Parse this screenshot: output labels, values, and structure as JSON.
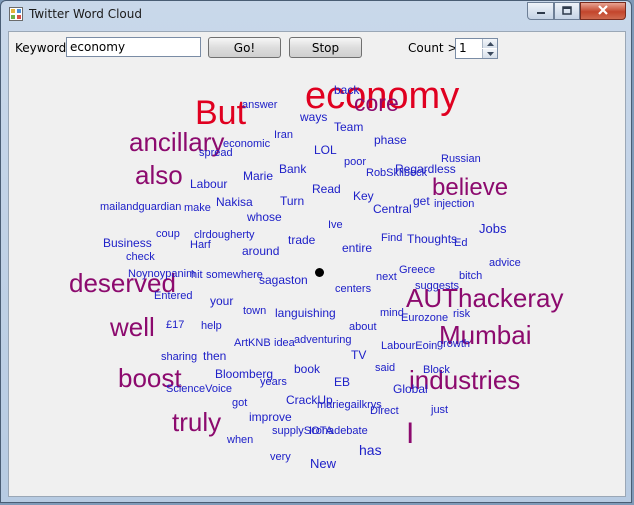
{
  "window": {
    "title": "Twitter Word Cloud"
  },
  "toolbar": {
    "keyword_label": "Keyword:",
    "keyword_value": "economy",
    "go_label": "Go!",
    "stop_label": "Stop",
    "count_label": "Count >",
    "count_value": "1"
  },
  "colors": {
    "red": "#e00020",
    "purple": "#8c0a6e",
    "blue": "#1e20c8"
  },
  "cloud": {
    "words": [
      {
        "text": "economy",
        "color": "red"
      },
      {
        "text": "But",
        "color": "red"
      },
      {
        "text": "core",
        "color": "purple"
      },
      {
        "text": "ancillary",
        "color": "purple"
      },
      {
        "text": "also",
        "color": "purple"
      },
      {
        "text": "believe",
        "color": "purple"
      },
      {
        "text": "deserved",
        "color": "purple"
      },
      {
        "text": "AUThackeray",
        "color": "purple"
      },
      {
        "text": "well",
        "color": "purple"
      },
      {
        "text": "Mumbai",
        "color": "purple"
      },
      {
        "text": "boost",
        "color": "purple"
      },
      {
        "text": "industries",
        "color": "purple"
      },
      {
        "text": "truly",
        "color": "purple"
      },
      {
        "text": "I",
        "color": "purple"
      },
      {
        "text": "back",
        "color": "blue"
      },
      {
        "text": "answer",
        "color": "blue"
      },
      {
        "text": "ways",
        "color": "blue"
      },
      {
        "text": "Iran",
        "color": "blue"
      },
      {
        "text": "Team",
        "color": "blue"
      },
      {
        "text": "phase",
        "color": "blue"
      },
      {
        "text": "economic",
        "color": "blue"
      },
      {
        "text": "spread",
        "color": "blue"
      },
      {
        "text": "LOL",
        "color": "blue"
      },
      {
        "text": "poor",
        "color": "blue"
      },
      {
        "text": "Russian",
        "color": "blue"
      },
      {
        "text": "Bank",
        "color": "blue"
      },
      {
        "text": "Marie",
        "color": "blue"
      },
      {
        "text": "Regardless",
        "color": "blue"
      },
      {
        "text": "RobSkilbeck",
        "color": "blue"
      },
      {
        "text": "Labour",
        "color": "blue"
      },
      {
        "text": "Read",
        "color": "blue"
      },
      {
        "text": "Key",
        "color": "blue"
      },
      {
        "text": "Nakisa",
        "color": "blue"
      },
      {
        "text": "Turn",
        "color": "blue"
      },
      {
        "text": "get",
        "color": "blue"
      },
      {
        "text": "injection",
        "color": "blue"
      },
      {
        "text": "mailandguardian",
        "color": "blue"
      },
      {
        "text": "make",
        "color": "blue"
      },
      {
        "text": "whose",
        "color": "blue"
      },
      {
        "text": "Central",
        "color": "blue"
      },
      {
        "text": "Ive",
        "color": "blue"
      },
      {
        "text": "Jobs",
        "color": "blue"
      },
      {
        "text": "coup",
        "color": "blue"
      },
      {
        "text": "clrdougherty",
        "color": "blue"
      },
      {
        "text": "trade",
        "color": "blue"
      },
      {
        "text": "Find",
        "color": "blue"
      },
      {
        "text": "Thoughts",
        "color": "blue"
      },
      {
        "text": "Ed",
        "color": "blue"
      },
      {
        "text": "Business",
        "color": "blue"
      },
      {
        "text": "Harf",
        "color": "blue"
      },
      {
        "text": "around",
        "color": "blue"
      },
      {
        "text": "entire",
        "color": "blue"
      },
      {
        "text": "check",
        "color": "blue"
      },
      {
        "text": "advice",
        "color": "blue"
      },
      {
        "text": "Noynoypanim",
        "color": "blue"
      },
      {
        "text": "hit",
        "color": "blue"
      },
      {
        "text": "somewhere",
        "color": "blue"
      },
      {
        "text": "sagaston",
        "color": "blue"
      },
      {
        "text": "next",
        "color": "blue"
      },
      {
        "text": "Greece",
        "color": "blue"
      },
      {
        "text": "bitch",
        "color": "blue"
      },
      {
        "text": "suggests",
        "color": "blue"
      },
      {
        "text": "Entered",
        "color": "blue"
      },
      {
        "text": "centers",
        "color": "blue"
      },
      {
        "text": "your",
        "color": "blue"
      },
      {
        "text": "risk",
        "color": "blue"
      },
      {
        "text": "town",
        "color": "blue"
      },
      {
        "text": "languishing",
        "color": "blue"
      },
      {
        "text": "mind",
        "color": "blue"
      },
      {
        "text": "Eurozone",
        "color": "blue"
      },
      {
        "text": "£17",
        "color": "blue"
      },
      {
        "text": "help",
        "color": "blue"
      },
      {
        "text": "about",
        "color": "blue"
      },
      {
        "text": "ArtKNB",
        "color": "blue"
      },
      {
        "text": "idea",
        "color": "blue"
      },
      {
        "text": "adventuring",
        "color": "blue"
      },
      {
        "text": "LabourEoin",
        "color": "blue"
      },
      {
        "text": "growth",
        "color": "blue"
      },
      {
        "text": "sharing",
        "color": "blue"
      },
      {
        "text": "then",
        "color": "blue"
      },
      {
        "text": "TV",
        "color": "blue"
      },
      {
        "text": "book",
        "color": "blue"
      },
      {
        "text": "said",
        "color": "blue"
      },
      {
        "text": "Block",
        "color": "blue"
      },
      {
        "text": "Bloomberg",
        "color": "blue"
      },
      {
        "text": "years",
        "color": "blue"
      },
      {
        "text": "EB",
        "color": "blue"
      },
      {
        "text": "ScienceVoice",
        "color": "blue"
      },
      {
        "text": "Global",
        "color": "blue"
      },
      {
        "text": "CrackUp",
        "color": "blue"
      },
      {
        "text": "got",
        "color": "blue"
      },
      {
        "text": "mariegailkrys",
        "color": "blue"
      },
      {
        "text": "Direct",
        "color": "blue"
      },
      {
        "text": "just",
        "color": "blue"
      },
      {
        "text": "improve",
        "color": "blue"
      },
      {
        "text": "supplySOTA",
        "color": "blue"
      },
      {
        "text": "Ironadebate",
        "color": "blue"
      },
      {
        "text": "when",
        "color": "blue"
      },
      {
        "text": "has",
        "color": "blue"
      },
      {
        "text": "very",
        "color": "blue"
      },
      {
        "text": "New",
        "color": "blue"
      }
    ]
  }
}
